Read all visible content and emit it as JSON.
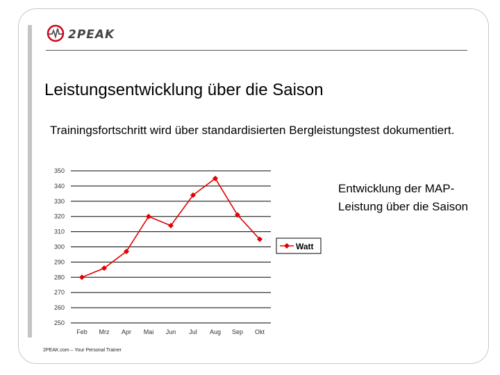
{
  "brand": {
    "name": "2PEAK"
  },
  "slide": {
    "title": "Leistungsentwicklung über die Saison",
    "subtitle": "Trainingsfortschritt wird über standardisierten Bergleistungstest dokumentiert.",
    "side_note": "Entwicklung der MAP-Leistung über die Saison",
    "footer": "2PEAK.com – Your Personal Trainer"
  },
  "colors": {
    "series": "#e00000",
    "grid": "#000000",
    "frame": "#c8c8c8"
  },
  "chart_data": {
    "type": "line",
    "categories": [
      "Feb",
      "Mrz",
      "Apr",
      "Mai",
      "Jun",
      "Jul",
      "Aug",
      "Sep",
      "Okt"
    ],
    "series": [
      {
        "name": "Watt",
        "values": [
          280,
          286,
          297,
          320,
          314,
          334,
          345,
          321,
          305
        ],
        "marker": "diamond"
      }
    ],
    "y_ticks": [
      "350",
      "340",
      "330",
      "320",
      "310",
      "300",
      "290",
      "280",
      "270",
      "260",
      "250"
    ],
    "ylim": [
      250,
      350
    ],
    "grid": true,
    "legend": "right"
  }
}
